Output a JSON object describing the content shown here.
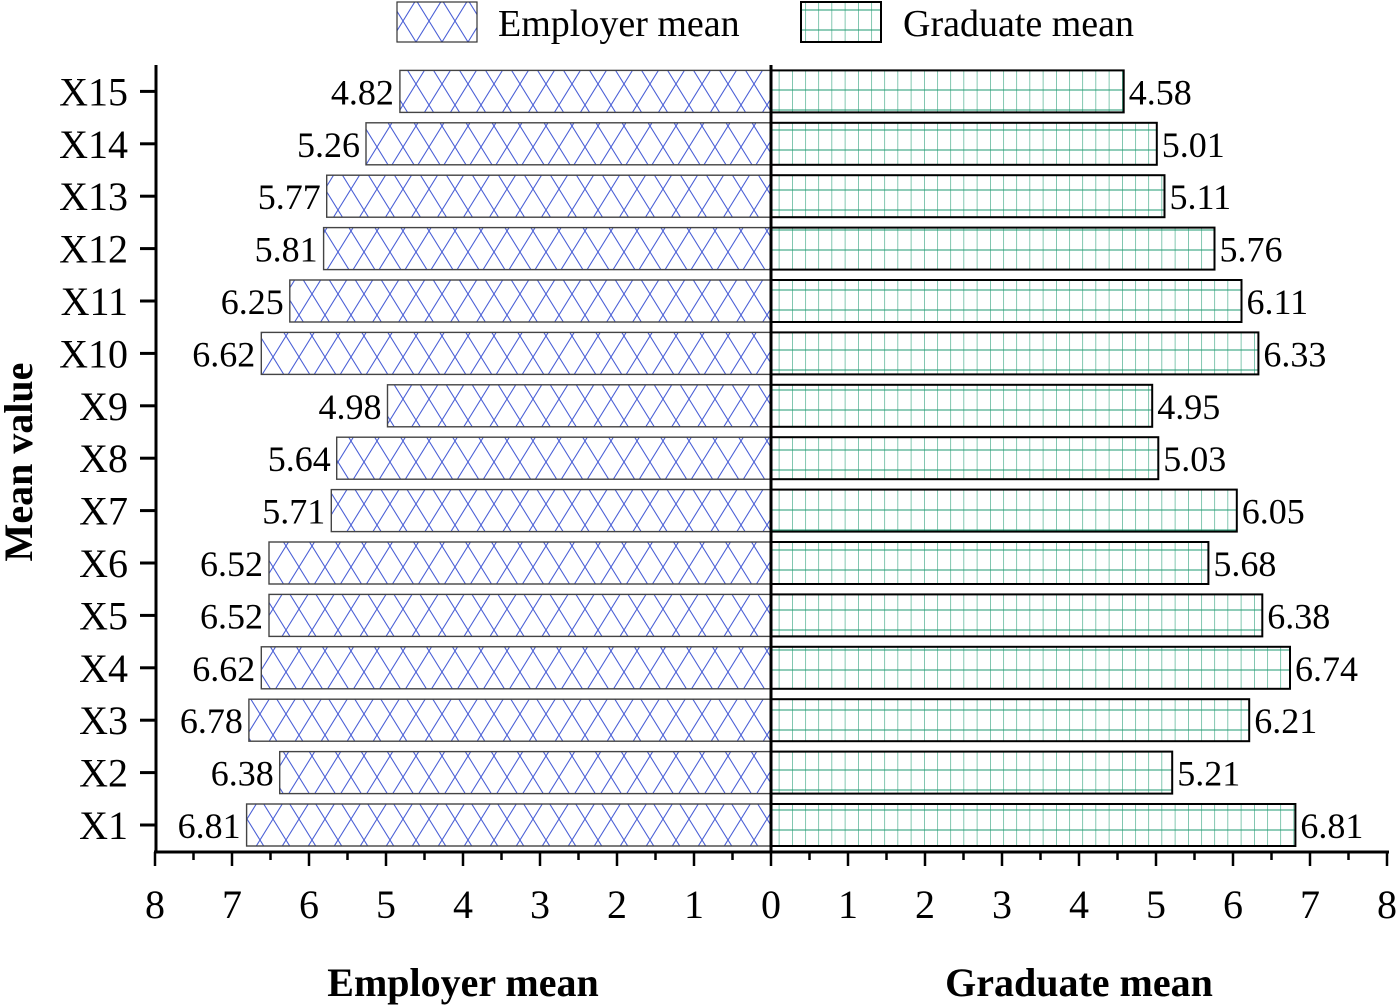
{
  "chart_data": {
    "type": "bar",
    "orientation": "horizontal-butterfly",
    "title": "",
    "ylabel": "Mean value",
    "xlabel_left": "Employer mean",
    "xlabel_right": "Graduate mean",
    "xlim": [
      0,
      8
    ],
    "x_ticks_left": [
      "8",
      "7",
      "6",
      "5",
      "4",
      "3",
      "2",
      "1",
      "0"
    ],
    "x_ticks_right": [
      "1",
      "2",
      "3",
      "4",
      "5",
      "6",
      "7",
      "8"
    ],
    "categories": [
      "X1",
      "X2",
      "X3",
      "X4",
      "X5",
      "X6",
      "X7",
      "X8",
      "X9",
      "X10",
      "X11",
      "X12",
      "X13",
      "X14",
      "X15"
    ],
    "series": [
      {
        "name": "Employer mean",
        "side": "left",
        "pattern": "crosshatch",
        "color": "#3a4fd0",
        "values": [
          6.81,
          6.38,
          6.78,
          6.62,
          6.52,
          6.52,
          5.71,
          5.64,
          4.98,
          6.62,
          6.25,
          5.81,
          5.77,
          5.26,
          4.82
        ]
      },
      {
        "name": "Graduate mean",
        "side": "right",
        "pattern": "grid",
        "color": "#1a9a6c",
        "values": [
          6.81,
          5.21,
          6.21,
          6.74,
          6.38,
          5.68,
          6.05,
          5.03,
          4.95,
          6.33,
          6.11,
          5.76,
          5.11,
          5.01,
          4.58
        ]
      }
    ],
    "legend": {
      "position": "top",
      "entries": [
        "Employer mean",
        "Graduate mean"
      ]
    },
    "grid": false
  },
  "labels": {
    "legend_employer": "Employer mean",
    "legend_graduate": "Graduate mean",
    "y_axis_title": "Mean value",
    "x_axis_title_left": "Employer mean",
    "x_axis_title_right": "Graduate mean"
  }
}
